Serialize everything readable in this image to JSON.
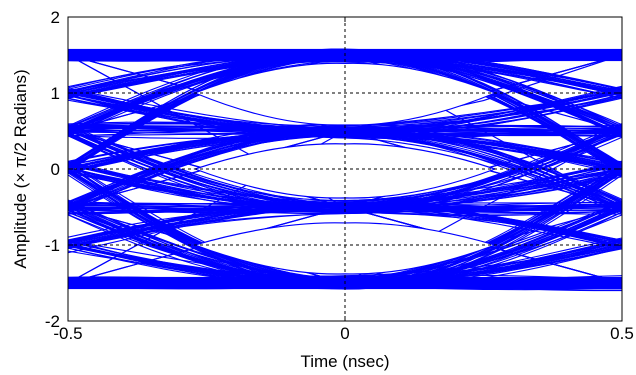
{
  "chart_data": {
    "type": "line",
    "title": "",
    "xlabel": "Time (nsec)",
    "ylabel": "Amplitude (× π/2 Radians)",
    "xlim": [
      -0.5,
      0.5
    ],
    "ylim": [
      -2,
      2
    ],
    "xticks": [
      -0.5,
      0,
      0.5
    ],
    "xtick_labels": [
      "-0.5",
      "0",
      "0.5"
    ],
    "yticks": [
      -2,
      -1,
      0,
      1,
      2
    ],
    "ytick_labels": [
      "-2",
      "-1",
      "0",
      "1",
      "2"
    ],
    "grid": "dashed lines at x=0 and y=-1, 0, 1",
    "line_color": "#0000FF",
    "grid_color": "#000000",
    "eye_levels": [
      -1.5,
      -0.5,
      0.5,
      1.5
    ],
    "eye_openings": [
      {
        "center": 1,
        "top": 1.39,
        "bottom": 0.58
      },
      {
        "center": 0,
        "top": 0.33,
        "bottom": -0.38
      },
      {
        "center": -1,
        "top": -0.71,
        "bottom": -1.38
      }
    ],
    "series": [
      {
        "x": [
          -0.5,
          -0.25,
          0,
          0.25,
          0.5
        ],
        "y": [
          1.5,
          1.5,
          1.48,
          1.5,
          1.5
        ]
      },
      {
        "x": [
          -0.5,
          -0.25,
          0,
          0.25,
          0.5
        ],
        "y": [
          -1.5,
          -1.5,
          -1.5,
          -1.5,
          -1.5
        ]
      },
      {
        "x": [
          -0.5,
          -0.25,
          0,
          0.25,
          0.5
        ],
        "y": [
          1.5,
          1.0,
          0.5,
          0.9,
          1.5
        ]
      },
      {
        "x": [
          -0.5,
          -0.25,
          0,
          0.25,
          0.5
        ],
        "y": [
          0.5,
          1.0,
          1.5,
          1.0,
          0.5
        ]
      },
      {
        "x": [
          -0.5,
          -0.25,
          0,
          0.25,
          0.5
        ],
        "y": [
          0.5,
          0.5,
          0.5,
          0.5,
          0.5
        ]
      },
      {
        "x": [
          -0.5,
          -0.25,
          0,
          0.25,
          0.5
        ],
        "y": [
          -0.5,
          0.0,
          0.5,
          0.0,
          -0.5
        ]
      },
      {
        "x": [
          -0.5,
          -0.25,
          0,
          0.25,
          0.5
        ],
        "y": [
          0.5,
          0.0,
          -0.5,
          0.0,
          0.5
        ]
      },
      {
        "x": [
          -0.5,
          -0.25,
          0,
          0.25,
          0.5
        ],
        "y": [
          -0.5,
          -0.5,
          -0.5,
          -0.5,
          -0.5
        ]
      },
      {
        "x": [
          -0.5,
          -0.25,
          0,
          0.25,
          0.5
        ],
        "y": [
          -1.5,
          -1.0,
          -0.5,
          -1.0,
          -1.5
        ]
      },
      {
        "x": [
          -0.5,
          -0.25,
          0,
          0.25,
          0.5
        ],
        "y": [
          -0.5,
          -1.0,
          -1.5,
          -1.0,
          -0.5
        ]
      },
      {
        "x": [
          -0.5,
          -0.25,
          0,
          0.25,
          0.5
        ],
        "y": [
          1.5,
          0.5,
          -0.5,
          -1.0,
          -1.5
        ]
      },
      {
        "x": [
          -0.5,
          -0.25,
          0,
          0.25,
          0.5
        ],
        "y": [
          -1.5,
          -0.5,
          0.5,
          1.0,
          1.5
        ]
      },
      {
        "x": [
          -0.5,
          -0.25,
          0,
          0.25,
          0.5
        ],
        "y": [
          1.5,
          1.0,
          0.5,
          0.0,
          -0.5
        ]
      },
      {
        "x": [
          -0.5,
          -0.25,
          0,
          0.25,
          0.5
        ],
        "y": [
          -0.5,
          0.0,
          0.5,
          1.0,
          1.5
        ]
      },
      {
        "x": [
          -0.5,
          -0.25,
          0,
          0.25,
          0.5
        ],
        "y": [
          0.5,
          0.0,
          -0.5,
          -1.0,
          -1.5
        ]
      },
      {
        "x": [
          -0.5,
          -0.25,
          0,
          0.25,
          0.5
        ],
        "y": [
          -1.5,
          -1.0,
          -0.5,
          0.0,
          0.5
        ]
      },
      {
        "x": [
          -0.5,
          -0.25,
          0,
          0.25,
          0.5
        ],
        "y": [
          1.5,
          0.5,
          0.5,
          1.0,
          1.5
        ]
      },
      {
        "x": [
          -0.5,
          -0.25,
          0,
          0.25,
          0.5
        ],
        "y": [
          -1.5,
          -0.5,
          -0.5,
          -1.0,
          -1.5
        ]
      },
      {
        "x": [
          -0.5,
          -0.25,
          0,
          0.25,
          0.5
        ],
        "y": [
          0.5,
          1.0,
          1.5,
          0.5,
          -0.5
        ]
      },
      {
        "x": [
          -0.5,
          -0.25,
          0,
          0.25,
          0.5
        ],
        "y": [
          -0.5,
          -1.0,
          -1.5,
          -0.5,
          0.5
        ]
      }
    ]
  }
}
